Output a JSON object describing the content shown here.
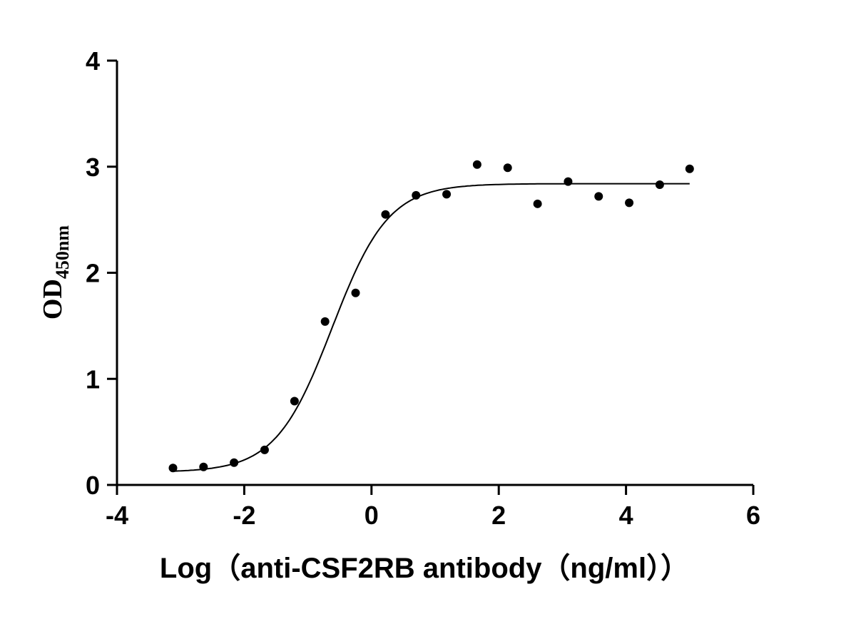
{
  "chart_data": {
    "type": "scatter",
    "title": "",
    "xlabel": "Log（anti-CSF2RB antibody（ng/ml））",
    "ylabel": "OD",
    "ylabel_subscript": "450nm",
    "xlim": [
      -4,
      6
    ],
    "ylim": [
      0,
      4
    ],
    "xticks": [
      -4,
      -2,
      0,
      2,
      4,
      6
    ],
    "yticks": [
      0,
      1,
      2,
      3,
      4
    ],
    "grid": false,
    "marker_color": "#000000",
    "x": [
      -3.12,
      -2.64,
      -2.16,
      -1.68,
      -1.21,
      -0.73,
      -0.25,
      0.22,
      0.7,
      1.18,
      1.66,
      2.14,
      2.61,
      3.09,
      3.57,
      4.05,
      4.53,
      5.0
    ],
    "y": [
      0.16,
      0.17,
      0.21,
      0.33,
      0.79,
      1.54,
      1.81,
      2.55,
      2.73,
      2.74,
      3.02,
      2.99,
      2.65,
      2.86,
      2.72,
      2.66,
      2.83,
      2.98
    ],
    "fit": {
      "model": "4PL",
      "bottom": 0.12,
      "top": 2.84,
      "logEC50": -0.62,
      "hill": 0.98
    }
  }
}
